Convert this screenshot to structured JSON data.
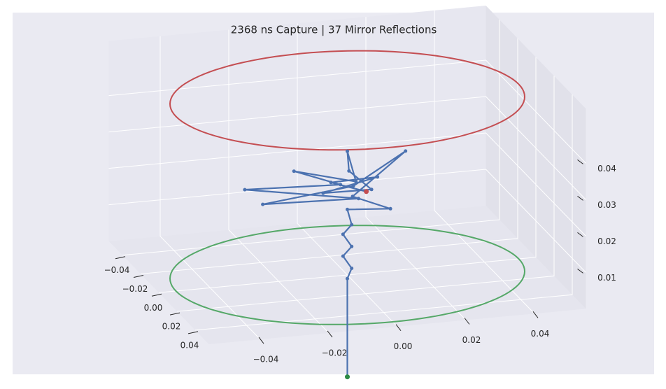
{
  "chart_data": {
    "type": "line3d",
    "title": "2368 ns Capture | 37 Mirror Reflections",
    "xlim": [
      -0.055,
      0.055
    ],
    "ylim": [
      -0.055,
      0.055
    ],
    "zlim": [
      0,
      0.055
    ],
    "xticks": [
      {
        "value": -0.04,
        "label": "−0.04"
      },
      {
        "value": -0.02,
        "label": "−0.02"
      },
      {
        "value": 0,
        "label": "0.00"
      },
      0.02,
      0.04
    ],
    "yticks": [
      {
        "value": -0.04,
        "label": "−0.04"
      },
      {
        "value": -0.02,
        "label": "−0.02"
      },
      {
        "value": 0,
        "label": "0.00"
      },
      0.02,
      0.04
    ],
    "zticks": [
      0.01,
      0.02,
      0.03,
      0.04
    ],
    "grid": true,
    "rings": [
      {
        "color": "#c44e52",
        "z": 0.048,
        "radius": 0.05
      },
      {
        "color": "#55a868",
        "z": 0,
        "radius": 0.05
      }
    ],
    "series": [
      {
        "color": "#4c72b0",
        "start_color": "#2d8a45",
        "end_color": "#c44e52",
        "x": [
          0,
          0,
          0.001,
          -0.001,
          0.001,
          -0.001,
          0.001,
          0,
          0.021,
          0.002,
          -0.034,
          -0.001,
          0.005,
          0.001,
          -0.011,
          0,
          -0.021,
          0.002,
          0,
          -0.002,
          0.004,
          -0.004,
          0.003,
          -0.003,
          0.002
        ],
        "y": [
          0,
          0,
          0.001,
          -0.001,
          0.001,
          -0.001,
          0.001,
          0,
          0.007,
          0.001,
          0.026,
          0.002,
          -0.026,
          0.003,
          -0.027,
          -0.002,
          -0.01,
          0.002,
          0,
          0.001,
          0.006,
          -0.006,
          0.008,
          -0.004,
          0.005
        ],
        "z": [
          -0.028,
          -0.001,
          0.002,
          0.005,
          0.008,
          0.011,
          0.014,
          0.018,
          0.023,
          0.022,
          0.023,
          0.024,
          0.023,
          0.021,
          0.023,
          0.025,
          0.024,
          0.026,
          0.034,
          0.028,
          0.024,
          0.022,
          0.027,
          0.025,
          0.023
        ]
      }
    ]
  }
}
